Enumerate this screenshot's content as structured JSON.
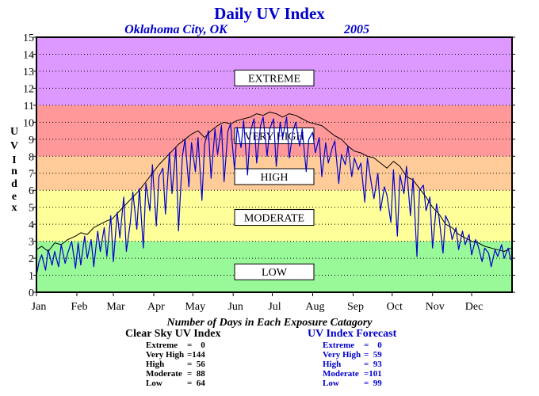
{
  "chart_data": {
    "type": "line",
    "title": "Daily UV Index",
    "subtitle_location": "Oklahoma City, OK",
    "subtitle_year": "2005",
    "ylabel": "UV Index",
    "ylim": [
      0,
      15
    ],
    "yticks": [
      "0",
      "1",
      "2",
      "3",
      "4",
      "5",
      "6",
      "7",
      "8",
      "9",
      "10",
      "11",
      "12",
      "13",
      "14",
      "15"
    ],
    "months": [
      "Jan",
      "Feb",
      "Mar",
      "Apr",
      "May",
      "Jun",
      "Jul",
      "Aug",
      "Sep",
      "Oct",
      "Nov",
      "Dec"
    ],
    "grid": true,
    "bands": [
      {
        "label": "LOW",
        "from": 0,
        "to": 3,
        "color": "#99f999"
      },
      {
        "label": "MODERATE",
        "from": 3,
        "to": 6,
        "color": "#ffff99"
      },
      {
        "label": "HIGH",
        "from": 6,
        "to": 8,
        "color": "#ffcc99"
      },
      {
        "label": "VERY HIGH",
        "from": 8,
        "to": 11,
        "color": "#ff9999"
      },
      {
        "label": "EXTREME",
        "from": 11,
        "to": 15,
        "color": "#dd99ff"
      }
    ],
    "series": [
      {
        "name": "Clear Sky UV Index",
        "color": "#000000",
        "x": [
          1,
          5,
          10,
          15,
          20,
          25,
          31,
          35,
          40,
          45,
          50,
          55,
          59,
          65,
          70,
          75,
          80,
          85,
          90,
          95,
          100,
          105,
          110,
          115,
          120,
          125,
          130,
          135,
          140,
          145,
          150,
          155,
          160,
          165,
          170,
          175,
          180,
          185,
          190,
          195,
          200,
          205,
          210,
          215,
          220,
          225,
          230,
          235,
          240,
          245,
          250,
          255,
          260,
          265,
          270,
          275,
          280,
          285,
          290,
          295,
          300,
          305,
          310,
          315,
          320,
          325,
          330,
          335,
          340,
          345,
          350,
          355,
          360,
          365
        ],
        "y": [
          2.5,
          2.7,
          2.4,
          2.9,
          2.8,
          3.1,
          3.3,
          3.5,
          3.4,
          3.8,
          4.0,
          4.2,
          4.3,
          4.8,
          5.2,
          5.6,
          6.0,
          6.5,
          7.0,
          7.5,
          7.9,
          8.3,
          8.7,
          9.0,
          9.3,
          9.5,
          9.1,
          9.5,
          9.8,
          10.0,
          9.9,
          10.1,
          10.2,
          10.3,
          10.5,
          10.4,
          10.6,
          10.5,
          10.3,
          10.5,
          10.4,
          10.2,
          10.0,
          9.9,
          9.8,
          9.5,
          9.2,
          9.0,
          8.6,
          8.3,
          8.2,
          8.0,
          7.9,
          7.6,
          7.3,
          7.7,
          7.4,
          6.8,
          6.6,
          6.1,
          5.6,
          5.0,
          4.6,
          4.0,
          3.8,
          3.4,
          3.2,
          3.0,
          2.9,
          2.7,
          2.6,
          2.5,
          2.4,
          2.6
        ]
      },
      {
        "name": "UV Index Forecast",
        "color": "#0000cc",
        "x": [
          1,
          3,
          5,
          8,
          10,
          13,
          15,
          18,
          20,
          23,
          25,
          28,
          31,
          33,
          35,
          38,
          40,
          43,
          45,
          48,
          50,
          53,
          55,
          58,
          60,
          63,
          65,
          68,
          70,
          73,
          75,
          78,
          80,
          83,
          85,
          88,
          90,
          93,
          95,
          98,
          100,
          103,
          105,
          108,
          110,
          113,
          115,
          118,
          120,
          123,
          125,
          128,
          130,
          133,
          135,
          138,
          140,
          143,
          145,
          148,
          150,
          153,
          155,
          158,
          160,
          163,
          165,
          168,
          170,
          173,
          175,
          178,
          180,
          183,
          185,
          188,
          190,
          193,
          195,
          198,
          200,
          203,
          205,
          208,
          210,
          213,
          215,
          218,
          220,
          223,
          225,
          228,
          230,
          233,
          235,
          238,
          240,
          243,
          245,
          248,
          250,
          253,
          255,
          258,
          260,
          263,
          265,
          268,
          270,
          273,
          275,
          278,
          280,
          283,
          285,
          288,
          290,
          293,
          295,
          298,
          300,
          303,
          305,
          308,
          310,
          313,
          315,
          318,
          320,
          323,
          325,
          328,
          330,
          333,
          335,
          338,
          340,
          343,
          345,
          348,
          350,
          353,
          355,
          358,
          360,
          363,
          365
        ],
        "y": [
          1.0,
          1.8,
          2.2,
          1.3,
          2.5,
          1.6,
          2.4,
          1.5,
          2.8,
          1.7,
          2.3,
          3.0,
          1.4,
          2.9,
          1.6,
          3.3,
          2.0,
          3.1,
          1.5,
          3.6,
          2.4,
          3.8,
          2.1,
          4.5,
          1.8,
          4.7,
          3.2,
          5.6,
          2.4,
          4.1,
          5.9,
          3.7,
          6.1,
          2.6,
          6.4,
          4.8,
          7.5,
          3.9,
          6.8,
          7.3,
          4.6,
          8.2,
          5.8,
          8.5,
          3.6,
          8.0,
          9.0,
          6.2,
          8.8,
          7.1,
          9.1,
          5.4,
          8.7,
          9.5,
          6.7,
          9.6,
          8.1,
          9.8,
          6.5,
          9.5,
          9.9,
          7.2,
          9.7,
          8.5,
          10.1,
          6.9,
          9.4,
          10.2,
          7.6,
          9.8,
          10.3,
          8.0,
          9.6,
          10.2,
          7.4,
          10.0,
          9.1,
          10.3,
          7.9,
          9.5,
          10.0,
          8.6,
          9.6,
          7.1,
          9.0,
          9.4,
          8.2,
          9.1,
          6.8,
          8.8,
          7.6,
          8.5,
          8.9,
          6.4,
          8.1,
          7.5,
          8.6,
          6.8,
          7.9,
          7.2,
          7.6,
          5.3,
          7.9,
          6.4,
          5.5,
          7.0,
          4.8,
          6.2,
          5.7,
          4.1,
          7.2,
          3.3,
          6.9,
          5.8,
          7.4,
          4.5,
          6.7,
          2.1,
          6.0,
          6.3,
          4.8,
          5.6,
          2.6,
          5.2,
          4.4,
          2.3,
          4.5,
          4.0,
          3.1,
          3.8,
          2.5,
          3.6,
          2.8,
          3.4,
          2.2,
          3.1,
          2.7,
          1.8,
          2.6,
          2.3,
          1.5,
          2.5,
          2.1,
          2.8,
          2.0,
          2.6,
          1.9
        ]
      }
    ],
    "band_label_positions": {
      "LOW": 1.2,
      "MODERATE": 4.4,
      "HIGH": 6.8,
      "VERY HIGH": 9.2,
      "EXTREME": 12.6
    }
  },
  "counts_title": "Number of Days in Each Exposure Catagory",
  "clear_sky": {
    "title": "Clear Sky UV Index",
    "rows": [
      {
        "label": "Extreme",
        "value": "=    0"
      },
      {
        "label": "Very High",
        "value": "=144"
      },
      {
        "label": "High",
        "value": "=  56"
      },
      {
        "label": "Moderate",
        "value": "=  88"
      },
      {
        "label": "Low",
        "value": "=  64"
      }
    ]
  },
  "forecast": {
    "title": "UV Index Forecast",
    "rows": [
      {
        "label": "Extreme",
        "value": "=    0"
      },
      {
        "label": "Very High",
        "value": "=  59"
      },
      {
        "label": "High",
        "value": "=  93"
      },
      {
        "label": "Moderate",
        "value": "=101"
      },
      {
        "label": "Low",
        "value": "=  99"
      }
    ]
  }
}
